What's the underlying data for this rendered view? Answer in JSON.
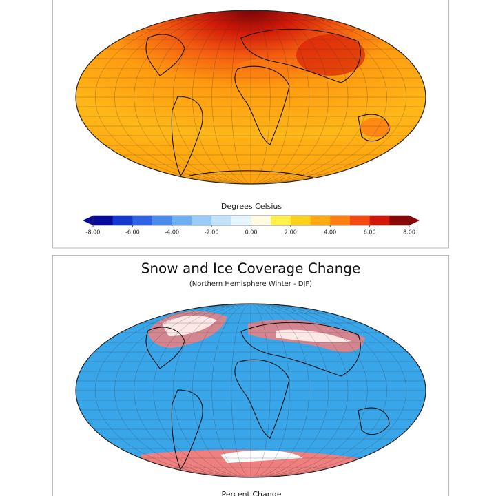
{
  "panels": [
    {
      "colorbar": {
        "label": "Degrees Celsius",
        "ticks": [
          {
            "value": -8,
            "label": "-8.00"
          },
          {
            "value": -6,
            "label": "-6.00"
          },
          {
            "value": -4,
            "label": "-4.00"
          },
          {
            "value": -2,
            "label": "-2.00"
          },
          {
            "value": 0,
            "label": "0.00"
          },
          {
            "value": 2,
            "label": "2.00"
          },
          {
            "value": 4,
            "label": "4.00"
          },
          {
            "value": 6,
            "label": "6.00"
          },
          {
            "value": 8,
            "label": "8.00"
          }
        ],
        "colors": [
          "#0a0a9a",
          "#1438d0",
          "#2f62e4",
          "#4a8cec",
          "#6eaef2",
          "#98cbf7",
          "#c2e4fb",
          "#e6f6ff",
          "#fffbe0",
          "#fff14a",
          "#ffd21a",
          "#ffaa10",
          "#ff7e10",
          "#f44a10",
          "#d01808",
          "#8a0606"
        ]
      }
    },
    {
      "title": "Snow and Ice Coverage Change",
      "subtitle": "(Northern Hemisphere Winter - DJF)",
      "colorbar": {
        "label": "Percent Change"
      }
    }
  ]
}
